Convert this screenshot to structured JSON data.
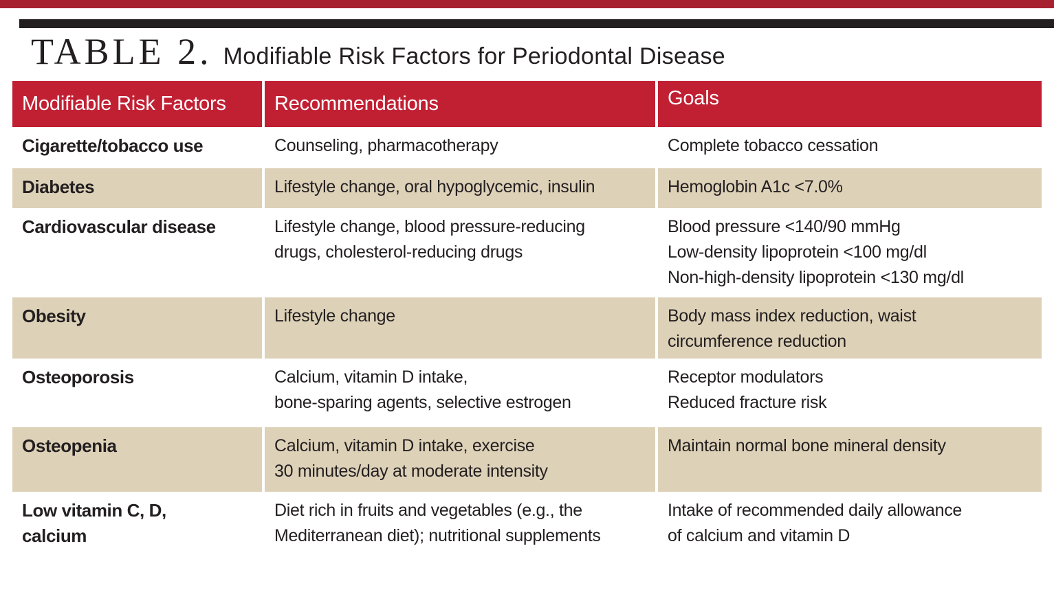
{
  "title": {
    "kicker": "TABLE 2.",
    "text": "Modifiable Risk Factors for Periodontal Disease"
  },
  "table": {
    "headers": {
      "factors": "Modifiable Risk Factors",
      "recommendations": "Recommendations",
      "goals": "Goals"
    },
    "rows": [
      {
        "factor": "Cigarette/tobacco use",
        "recommendation": "Counseling, pharmacotherapy",
        "goal": "Complete tobacco cessation"
      },
      {
        "factor": "Diabetes",
        "recommendation": "Lifestyle change, oral hypoglycemic, insulin",
        "goal": "Hemoglobin A1c <7.0%"
      },
      {
        "factor": "Cardiovascular disease",
        "recommendation": "Lifestyle change, blood pressure-reducing\ndrugs, cholesterol-reducing drugs",
        "goal": "Blood pressure <140/90 mmHg\nLow-density lipoprotein <100 mg/dl\nNon-high-density lipoprotein <130 mg/dl"
      },
      {
        "factor": "Obesity",
        "recommendation": "Lifestyle change",
        "goal": "Body mass index reduction, waist\ncircumference reduction"
      },
      {
        "factor": "Osteoporosis",
        "recommendation": "Calcium, vitamin D intake,\nbone-sparing agents, selective estrogen",
        "goal": "Receptor modulators\nReduced fracture risk"
      },
      {
        "factor": "Osteopenia",
        "recommendation": "Calcium, vitamin D intake, exercise\n30 minutes/day at moderate intensity",
        "goal": "Maintain normal bone mineral density"
      },
      {
        "factor": "Low vitamin C, D,\ncalcium",
        "recommendation": "Diet rich in fruits and vegetables (e.g., the\nMediterranean diet); nutritional supplements",
        "goal": "Intake of recommended daily allowance\nof calcium and vitamin D"
      }
    ],
    "striped_row_indexes": [
      1,
      3,
      5
    ]
  },
  "colors": {
    "top_accent_bar": "#a62030",
    "top_rule_black": "#231f20",
    "header_red": "#c12033",
    "header_text": "#ffffff",
    "striped_row_tan": "#ddd1b8",
    "body_text": "#231f20",
    "background": "#ffffff"
  }
}
